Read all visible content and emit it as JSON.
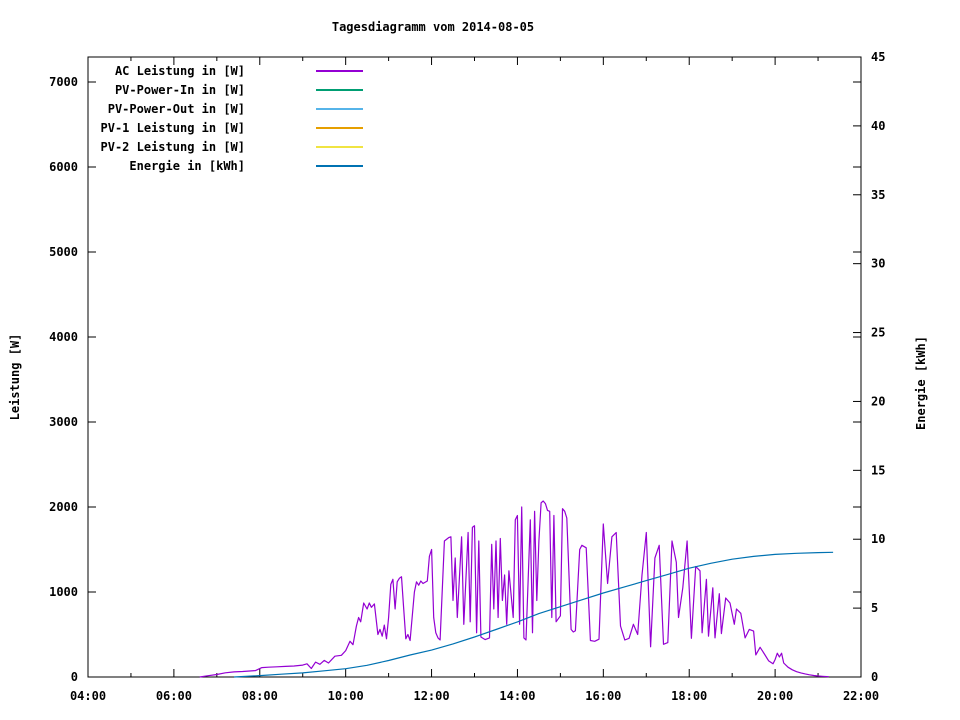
{
  "title": "Tagesdiagramm vom 2014-08-05",
  "axes": {
    "x": {
      "tick_labels": [
        "04:00",
        "06:00",
        "08:00",
        "10:00",
        "12:00",
        "14:00",
        "16:00",
        "18:00",
        "20:00",
        "22:00"
      ],
      "major_hours": [
        4,
        6,
        8,
        10,
        12,
        14,
        16,
        18,
        20,
        22
      ],
      "minor_hours": [
        5,
        7,
        9,
        11,
        13,
        15,
        17,
        19,
        21
      ],
      "range_hours": [
        4,
        22
      ]
    },
    "y_left": {
      "label": "Leistung [W]",
      "tick_values": [
        0,
        1000,
        2000,
        3000,
        4000,
        5000,
        6000,
        7000
      ],
      "range": [
        0,
        7280
      ]
    },
    "y_right": {
      "label": "Energie [kWh]",
      "tick_values": [
        0,
        5,
        10,
        15,
        20,
        25,
        30,
        35,
        40,
        45
      ],
      "range": [
        0,
        45
      ]
    }
  },
  "legend": {
    "items": [
      {
        "label": "AC Leistung in [W]",
        "color": "#9400d3"
      },
      {
        "label": "PV-Power-In in [W]",
        "color": "#009e73"
      },
      {
        "label": "PV-Power-Out in [W]",
        "color": "#56b4e9"
      },
      {
        "label": "PV-1 Leistung in [W]",
        "color": "#e69f00"
      },
      {
        "label": "PV-2 Leistung in [W]",
        "color": "#f0e442"
      },
      {
        "label": "Energie in [kWh]",
        "color": "#0072b2"
      }
    ]
  },
  "chart_data": {
    "type": "line",
    "title": "Tagesdiagramm vom 2014-08-05",
    "xlabel": "",
    "ylabel_left": "Leistung [W]",
    "ylabel_right": "Energie [kWh]",
    "x_unit": "hour_of_day",
    "xlim": [
      4,
      22
    ],
    "ylim_left": [
      0,
      7280
    ],
    "ylim_right": [
      0,
      45
    ],
    "grid": false,
    "legend_position": "top-left-inside",
    "series": [
      {
        "name": "AC Leistung in [W]",
        "color": "#9400d3",
        "axis": "left",
        "points": [
          [
            6.6,
            0
          ],
          [
            6.8,
            15
          ],
          [
            7.0,
            30
          ],
          [
            7.2,
            50
          ],
          [
            7.4,
            60
          ],
          [
            7.6,
            65
          ],
          [
            7.9,
            75
          ],
          [
            8.05,
            110
          ],
          [
            8.2,
            115
          ],
          [
            8.4,
            120
          ],
          [
            8.6,
            125
          ],
          [
            8.8,
            130
          ],
          [
            9.0,
            140
          ],
          [
            9.1,
            155
          ],
          [
            9.2,
            100
          ],
          [
            9.3,
            175
          ],
          [
            9.4,
            150
          ],
          [
            9.5,
            195
          ],
          [
            9.6,
            165
          ],
          [
            9.75,
            245
          ],
          [
            9.9,
            255
          ],
          [
            10.0,
            310
          ],
          [
            10.1,
            420
          ],
          [
            10.17,
            380
          ],
          [
            10.25,
            600
          ],
          [
            10.3,
            700
          ],
          [
            10.35,
            650
          ],
          [
            10.42,
            870
          ],
          [
            10.5,
            800
          ],
          [
            10.55,
            870
          ],
          [
            10.6,
            820
          ],
          [
            10.67,
            860
          ],
          [
            10.75,
            500
          ],
          [
            10.8,
            560
          ],
          [
            10.85,
            480
          ],
          [
            10.9,
            610
          ],
          [
            10.95,
            450
          ],
          [
            11.0,
            700
          ],
          [
            11.05,
            1090
          ],
          [
            11.1,
            1150
          ],
          [
            11.15,
            800
          ],
          [
            11.2,
            1120
          ],
          [
            11.25,
            1160
          ],
          [
            11.3,
            1180
          ],
          [
            11.35,
            820
          ],
          [
            11.4,
            450
          ],
          [
            11.45,
            500
          ],
          [
            11.5,
            430
          ],
          [
            11.6,
            1000
          ],
          [
            11.65,
            1120
          ],
          [
            11.7,
            1080
          ],
          [
            11.75,
            1130
          ],
          [
            11.8,
            1100
          ],
          [
            11.9,
            1130
          ],
          [
            11.95,
            1420
          ],
          [
            12.0,
            1500
          ],
          [
            12.05,
            700
          ],
          [
            12.1,
            520
          ],
          [
            12.15,
            460
          ],
          [
            12.2,
            435
          ],
          [
            12.3,
            1600
          ],
          [
            12.4,
            1640
          ],
          [
            12.45,
            1650
          ],
          [
            12.5,
            900
          ],
          [
            12.55,
            1400
          ],
          [
            12.6,
            700
          ],
          [
            12.7,
            1650
          ],
          [
            12.75,
            620
          ],
          [
            12.85,
            1700
          ],
          [
            12.9,
            650
          ],
          [
            12.95,
            1760
          ],
          [
            13.0,
            1780
          ],
          [
            13.05,
            520
          ],
          [
            13.1,
            1600
          ],
          [
            13.15,
            470
          ],
          [
            13.25,
            440
          ],
          [
            13.35,
            460
          ],
          [
            13.4,
            1560
          ],
          [
            13.45,
            800
          ],
          [
            13.5,
            1600
          ],
          [
            13.55,
            700
          ],
          [
            13.6,
            1630
          ],
          [
            13.65,
            900
          ],
          [
            13.7,
            1200
          ],
          [
            13.75,
            620
          ],
          [
            13.8,
            1250
          ],
          [
            13.9,
            700
          ],
          [
            13.95,
            1850
          ],
          [
            14.0,
            1900
          ],
          [
            14.05,
            620
          ],
          [
            14.1,
            2000
          ],
          [
            14.15,
            460
          ],
          [
            14.2,
            435
          ],
          [
            14.3,
            1850
          ],
          [
            14.35,
            520
          ],
          [
            14.4,
            1950
          ],
          [
            14.45,
            900
          ],
          [
            14.5,
            1600
          ],
          [
            14.55,
            2050
          ],
          [
            14.6,
            2070
          ],
          [
            14.65,
            2040
          ],
          [
            14.7,
            1960
          ],
          [
            14.75,
            1950
          ],
          [
            14.8,
            700
          ],
          [
            14.85,
            1900
          ],
          [
            14.9,
            650
          ],
          [
            15.0,
            720
          ],
          [
            15.05,
            1980
          ],
          [
            15.1,
            1950
          ],
          [
            15.15,
            1870
          ],
          [
            15.25,
            560
          ],
          [
            15.3,
            530
          ],
          [
            15.35,
            545
          ],
          [
            15.45,
            1500
          ],
          [
            15.5,
            1550
          ],
          [
            15.6,
            1520
          ],
          [
            15.7,
            430
          ],
          [
            15.8,
            420
          ],
          [
            15.9,
            445
          ],
          [
            16.0,
            1800
          ],
          [
            16.1,
            1100
          ],
          [
            16.2,
            1650
          ],
          [
            16.3,
            1700
          ],
          [
            16.4,
            600
          ],
          [
            16.5,
            435
          ],
          [
            16.6,
            455
          ],
          [
            16.7,
            620
          ],
          [
            16.8,
            500
          ],
          [
            16.9,
            1200
          ],
          [
            17.0,
            1700
          ],
          [
            17.1,
            355
          ],
          [
            17.2,
            1400
          ],
          [
            17.3,
            1550
          ],
          [
            17.4,
            385
          ],
          [
            17.5,
            405
          ],
          [
            17.6,
            1600
          ],
          [
            17.7,
            1350
          ],
          [
            17.75,
            700
          ],
          [
            17.85,
            1050
          ],
          [
            17.95,
            1600
          ],
          [
            18.05,
            455
          ],
          [
            18.15,
            1300
          ],
          [
            18.25,
            1250
          ],
          [
            18.3,
            520
          ],
          [
            18.4,
            1150
          ],
          [
            18.45,
            480
          ],
          [
            18.55,
            1050
          ],
          [
            18.6,
            460
          ],
          [
            18.7,
            980
          ],
          [
            18.75,
            510
          ],
          [
            18.85,
            930
          ],
          [
            18.95,
            870
          ],
          [
            19.05,
            620
          ],
          [
            19.1,
            800
          ],
          [
            19.2,
            750
          ],
          [
            19.3,
            460
          ],
          [
            19.4,
            560
          ],
          [
            19.5,
            540
          ],
          [
            19.55,
            260
          ],
          [
            19.65,
            350
          ],
          [
            19.75,
            270
          ],
          [
            19.85,
            190
          ],
          [
            19.95,
            155
          ],
          [
            20.0,
            205
          ],
          [
            20.05,
            280
          ],
          [
            20.1,
            235
          ],
          [
            20.15,
            280
          ],
          [
            20.2,
            165
          ],
          [
            20.3,
            115
          ],
          [
            20.4,
            85
          ],
          [
            20.5,
            62
          ],
          [
            20.6,
            48
          ],
          [
            20.7,
            36
          ],
          [
            20.8,
            26
          ],
          [
            20.9,
            18
          ],
          [
            21.0,
            12
          ],
          [
            21.1,
            8
          ],
          [
            21.25,
            3
          ]
        ]
      },
      {
        "name": "PV-Power-In in [W]",
        "color": "#009e73",
        "axis": "left",
        "points": []
      },
      {
        "name": "PV-Power-Out in [W]",
        "color": "#56b4e9",
        "axis": "left",
        "points": []
      },
      {
        "name": "PV-1 Leistung in [W]",
        "color": "#e69f00",
        "axis": "left",
        "points": []
      },
      {
        "name": "PV-2 Leistung in [W]",
        "color": "#f0e442",
        "axis": "left",
        "points": []
      },
      {
        "name": "Energie in [kWh]",
        "color": "#0072b2",
        "axis": "right",
        "points": [
          [
            7.4,
            0.0
          ],
          [
            8.0,
            0.1
          ],
          [
            8.5,
            0.2
          ],
          [
            9.0,
            0.3
          ],
          [
            9.5,
            0.45
          ],
          [
            10.0,
            0.6
          ],
          [
            10.5,
            0.85
          ],
          [
            11.0,
            1.2
          ],
          [
            11.5,
            1.6
          ],
          [
            12.0,
            1.95
          ],
          [
            12.5,
            2.4
          ],
          [
            13.0,
            2.9
          ],
          [
            13.5,
            3.45
          ],
          [
            14.0,
            4.0
          ],
          [
            14.5,
            4.6
          ],
          [
            15.0,
            5.1
          ],
          [
            15.5,
            5.6
          ],
          [
            16.0,
            6.1
          ],
          [
            16.5,
            6.55
          ],
          [
            17.0,
            7.0
          ],
          [
            17.5,
            7.45
          ],
          [
            18.0,
            7.9
          ],
          [
            18.5,
            8.25
          ],
          [
            19.0,
            8.55
          ],
          [
            19.5,
            8.75
          ],
          [
            20.0,
            8.9
          ],
          [
            20.5,
            8.98
          ],
          [
            21.0,
            9.03
          ],
          [
            21.35,
            9.05
          ]
        ]
      }
    ]
  }
}
